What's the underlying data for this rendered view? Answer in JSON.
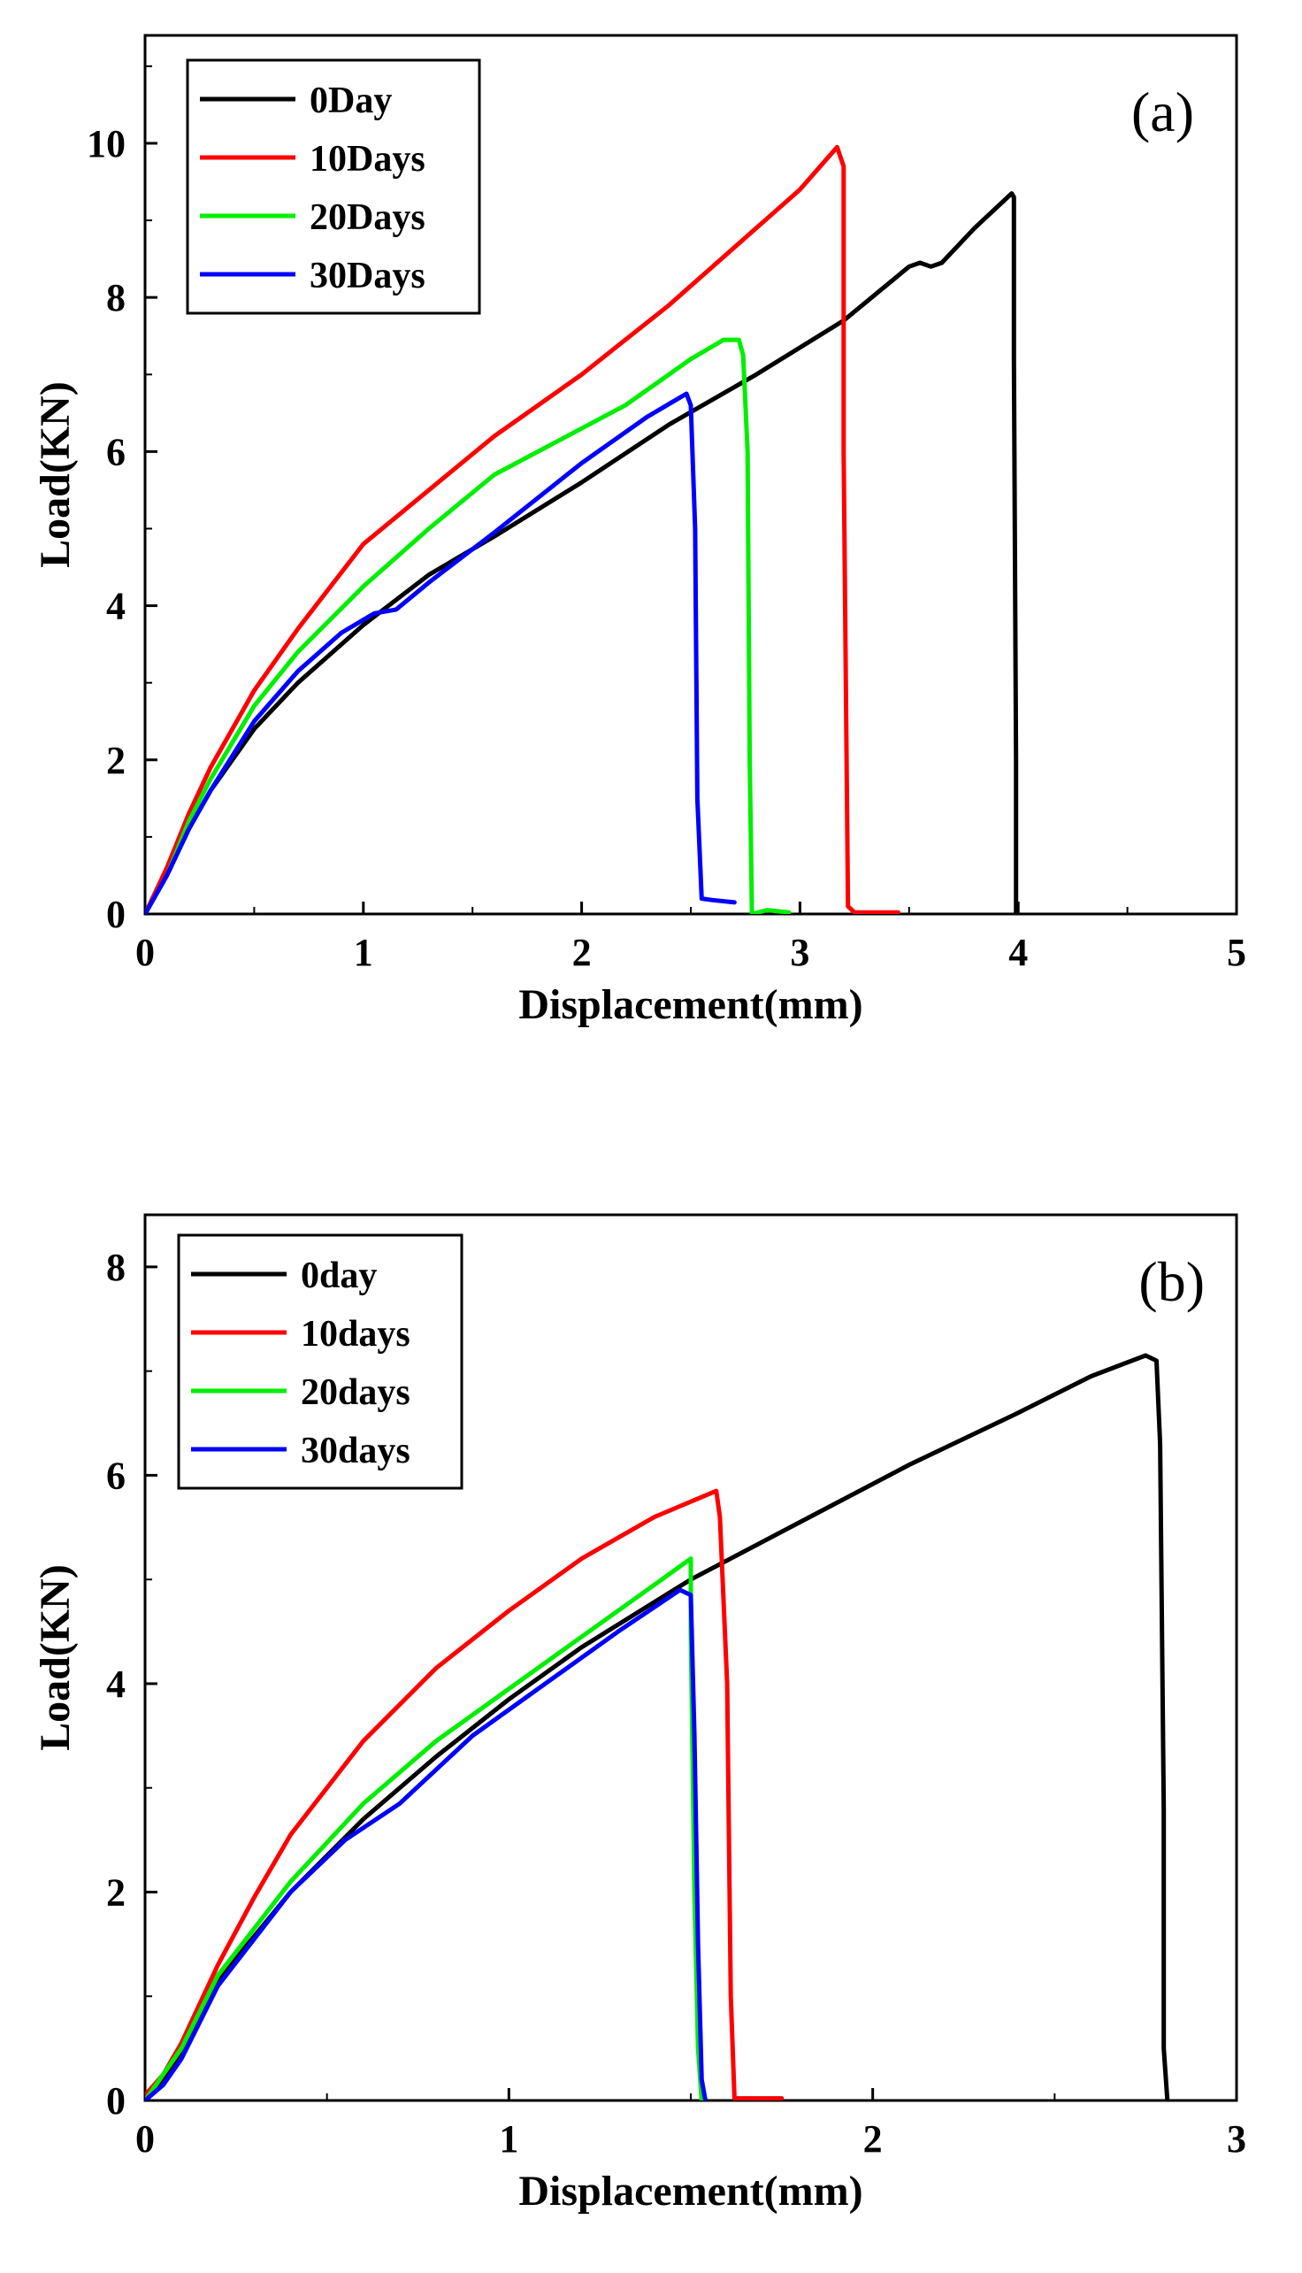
{
  "chart_data": [
    {
      "type": "line",
      "panel_label": "(a)",
      "xlabel": "Displacement(mm)",
      "ylabel": "Load(KN)",
      "xlim": [
        0,
        5
      ],
      "ylim": [
        0,
        11.4
      ],
      "xticks": [
        0,
        1,
        2,
        3,
        4,
        5
      ],
      "xtick_labels": [
        "0",
        "1",
        "2",
        "3",
        "4",
        "5"
      ],
      "yticks": [
        0,
        2,
        4,
        6,
        8,
        10
      ],
      "ytick_labels": [
        "0",
        "2",
        "4",
        "6",
        "8",
        "10"
      ],
      "legend_position": "top-left",
      "series": [
        {
          "name": "0Day",
          "color": "#000000",
          "x": [
            0,
            0.1,
            0.2,
            0.3,
            0.5,
            0.7,
            1.0,
            1.3,
            1.6,
            2.0,
            2.4,
            2.8,
            3.2,
            3.5,
            3.55,
            3.6,
            3.65,
            3.8,
            3.97,
            3.98,
            3.98,
            3.99,
            3.99
          ],
          "y": [
            0,
            0.5,
            1.1,
            1.6,
            2.4,
            3.0,
            3.75,
            4.4,
            4.9,
            5.6,
            6.35,
            7.0,
            7.7,
            8.4,
            8.45,
            8.4,
            8.45,
            8.9,
            9.35,
            9.3,
            7.2,
            2.0,
            0
          ]
        },
        {
          "name": "10Days",
          "color": "#ff0000",
          "x": [
            0,
            0.1,
            0.2,
            0.3,
            0.5,
            0.7,
            1.0,
            1.3,
            1.6,
            2.0,
            2.4,
            2.8,
            3.0,
            3.17,
            3.2,
            3.2,
            3.22,
            3.25,
            3.45
          ],
          "y": [
            0,
            0.6,
            1.3,
            1.9,
            2.9,
            3.7,
            4.8,
            5.5,
            6.2,
            7.0,
            7.9,
            8.9,
            9.4,
            9.95,
            9.7,
            6.0,
            0.1,
            0.02,
            0.02
          ]
        },
        {
          "name": "20Days",
          "color": "#00ee00",
          "x": [
            0,
            0.1,
            0.2,
            0.3,
            0.5,
            0.7,
            1.0,
            1.3,
            1.6,
            1.9,
            2.2,
            2.5,
            2.65,
            2.72,
            2.74,
            2.76,
            2.77,
            2.78,
            2.85,
            2.95
          ],
          "y": [
            0,
            0.5,
            1.2,
            1.75,
            2.7,
            3.4,
            4.25,
            5.0,
            5.7,
            6.15,
            6.6,
            7.2,
            7.45,
            7.45,
            7.25,
            6.0,
            2.0,
            0,
            0.05,
            0.02
          ]
        },
        {
          "name": "30Days",
          "color": "#0000ff",
          "x": [
            0,
            0.1,
            0.2,
            0.3,
            0.5,
            0.7,
            0.9,
            1.05,
            1.15,
            1.3,
            1.6,
            2.0,
            2.3,
            2.48,
            2.5,
            2.52,
            2.53,
            2.55,
            2.6,
            2.7
          ],
          "y": [
            0,
            0.5,
            1.1,
            1.6,
            2.5,
            3.15,
            3.65,
            3.9,
            3.95,
            4.3,
            4.95,
            5.85,
            6.45,
            6.75,
            6.6,
            5.0,
            1.5,
            0.2,
            0.18,
            0.15
          ]
        }
      ]
    },
    {
      "type": "line",
      "panel_label": "(b)",
      "xlabel": "Displacement(mm)",
      "ylabel": "Load(KN)",
      "xlim": [
        0,
        3
      ],
      "ylim": [
        0,
        8.5
      ],
      "xticks": [
        0,
        1,
        2,
        3
      ],
      "xtick_labels": [
        "0",
        "1",
        "2",
        "3"
      ],
      "yticks": [
        0,
        2,
        4,
        6,
        8
      ],
      "ytick_labels": [
        "0",
        "2",
        "4",
        "6",
        "8"
      ],
      "legend_position": "top-left",
      "series": [
        {
          "name": "0day",
          "color": "#000000",
          "x": [
            0,
            0.05,
            0.1,
            0.2,
            0.4,
            0.6,
            0.8,
            1.0,
            1.2,
            1.5,
            1.8,
            2.1,
            2.4,
            2.6,
            2.75,
            2.78,
            2.79,
            2.8,
            2.8,
            2.81
          ],
          "y": [
            0,
            0.2,
            0.45,
            1.15,
            2.0,
            2.7,
            3.3,
            3.85,
            4.35,
            5.0,
            5.55,
            6.1,
            6.6,
            6.95,
            7.15,
            7.1,
            6.3,
            2.8,
            0.5,
            0
          ]
        },
        {
          "name": "10days",
          "color": "#ff0000",
          "x": [
            0,
            0.05,
            0.1,
            0.2,
            0.3,
            0.4,
            0.6,
            0.8,
            1.0,
            1.2,
            1.4,
            1.57,
            1.58,
            1.6,
            1.61,
            1.62,
            1.75
          ],
          "y": [
            0.05,
            0.25,
            0.55,
            1.3,
            1.95,
            2.55,
            3.45,
            4.15,
            4.7,
            5.2,
            5.6,
            5.85,
            5.6,
            4.0,
            1.0,
            0.02,
            0.02
          ]
        },
        {
          "name": "20days",
          "color": "#00ee00",
          "x": [
            0,
            0.05,
            0.1,
            0.2,
            0.4,
            0.6,
            0.8,
            1.0,
            1.2,
            1.4,
            1.5,
            1.5,
            1.51,
            1.52,
            1.53
          ],
          "y": [
            0,
            0.25,
            0.5,
            1.2,
            2.1,
            2.85,
            3.45,
            3.95,
            4.45,
            4.95,
            5.2,
            4.5,
            2.0,
            0.5,
            0
          ]
        },
        {
          "name": "30days",
          "color": "#0000ff",
          "x": [
            0,
            0.05,
            0.1,
            0.2,
            0.4,
            0.55,
            0.7,
            0.9,
            1.1,
            1.3,
            1.47,
            1.5,
            1.51,
            1.52,
            1.53,
            1.54
          ],
          "y": [
            0,
            0.15,
            0.4,
            1.1,
            2.0,
            2.5,
            2.85,
            3.5,
            4.0,
            4.5,
            4.9,
            4.85,
            3.5,
            1.5,
            0.2,
            0
          ]
        }
      ]
    }
  ]
}
